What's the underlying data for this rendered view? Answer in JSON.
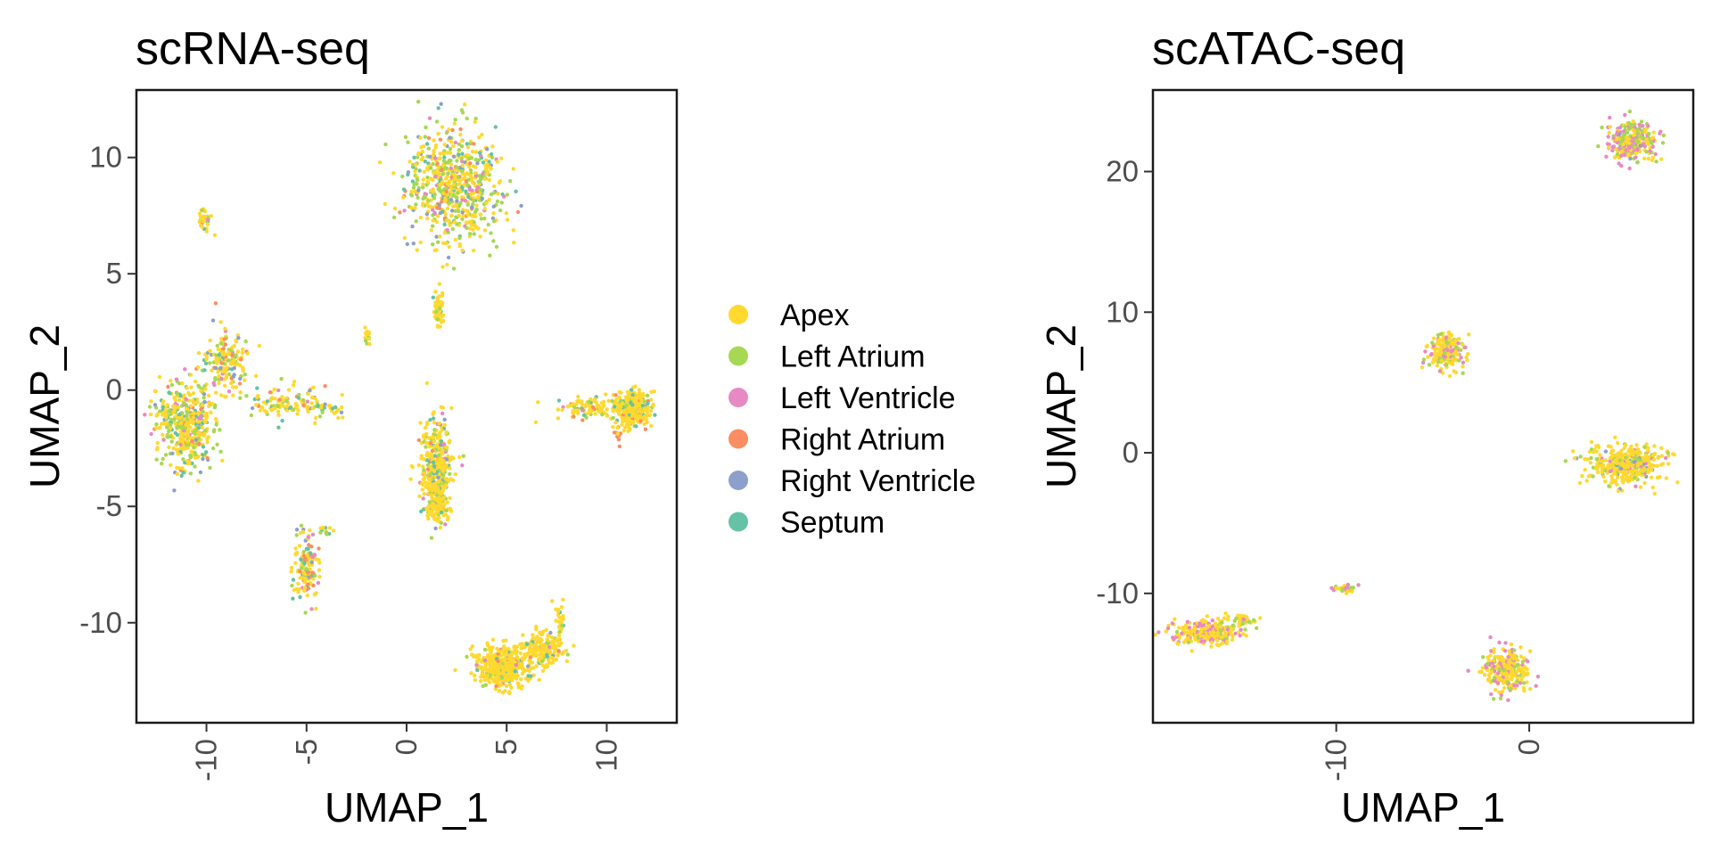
{
  "legend": {
    "items": [
      {
        "label": "Apex",
        "color": "#FFD92F"
      },
      {
        "label": "Left Atrium",
        "color": "#A6D854"
      },
      {
        "label": "Left Ventricle",
        "color": "#E78AC3"
      },
      {
        "label": "Right Atrium",
        "color": "#FC8D62"
      },
      {
        "label": "Right Ventricle",
        "color": "#8DA0CB"
      },
      {
        "label": "Septum",
        "color": "#66C2A5"
      }
    ]
  },
  "chart_data": [
    {
      "type": "scatter",
      "title": "scRNA-seq",
      "xlabel": "UMAP_1",
      "ylabel": "UMAP_2",
      "xlim": [
        -13.5,
        13.5
      ],
      "ylim": [
        -14.3,
        12.9
      ],
      "xticks": [
        -10,
        -5,
        0,
        5,
        10
      ],
      "xtick_labels": [
        "-10",
        "-5",
        "0",
        "5",
        "10"
      ],
      "yticks": [
        -10,
        -5,
        0,
        5,
        10
      ],
      "ytick_labels": [
        "-10",
        "-5",
        "0",
        "5",
        "10"
      ],
      "grid": false,
      "clusters": [
        {
          "cx": 2.4,
          "cy": 8.8,
          "sx": 1.6,
          "sy": 1.6,
          "n": 650,
          "mix": [
            0.45,
            0.3,
            0.05,
            0.06,
            0.06,
            0.08
          ]
        },
        {
          "cx": 1.6,
          "cy": 3.4,
          "sx": 0.2,
          "sy": 0.5,
          "n": 50,
          "mix": [
            0.9,
            0.05,
            0,
            0,
            0,
            0.05
          ]
        },
        {
          "cx": -10.1,
          "cy": 7.4,
          "sx": 0.2,
          "sy": 0.4,
          "n": 35,
          "mix": [
            0.7,
            0.1,
            0.1,
            0,
            0,
            0.1
          ]
        },
        {
          "cx": -2.0,
          "cy": 2.3,
          "sx": 0.12,
          "sy": 0.3,
          "n": 14,
          "mix": [
            0.7,
            0.2,
            0,
            0,
            0,
            0.1
          ]
        },
        {
          "cx": -11.0,
          "cy": -1.5,
          "sx": 1.0,
          "sy": 1.2,
          "n": 450,
          "mix": [
            0.55,
            0.2,
            0.05,
            0.05,
            0.05,
            0.1
          ]
        },
        {
          "cx": -9.0,
          "cy": 1.2,
          "sx": 0.8,
          "sy": 0.9,
          "n": 180,
          "mix": [
            0.5,
            0.2,
            0.05,
            0.08,
            0.07,
            0.1
          ]
        },
        {
          "cx": -6.0,
          "cy": -0.5,
          "sx": 1.3,
          "sy": 0.5,
          "n": 110,
          "mix": [
            0.55,
            0.2,
            0.05,
            0.05,
            0.05,
            0.1
          ]
        },
        {
          "cx": -4.0,
          "cy": -0.8,
          "sx": 0.6,
          "sy": 0.2,
          "n": 30,
          "mix": [
            0.6,
            0.2,
            0,
            0,
            0.1,
            0.1
          ]
        },
        {
          "cx": 1.5,
          "cy": -3.5,
          "sx": 0.55,
          "sy": 1.4,
          "n": 380,
          "mix": [
            0.65,
            0.15,
            0.04,
            0.04,
            0.04,
            0.08
          ]
        },
        {
          "cx": 1.6,
          "cy": -5.0,
          "sx": 0.4,
          "sy": 0.4,
          "n": 90,
          "mix": [
            0.9,
            0.05,
            0,
            0,
            0,
            0.05
          ]
        },
        {
          "cx": -5.0,
          "cy": -7.5,
          "sx": 0.4,
          "sy": 1.0,
          "n": 140,
          "mix": [
            0.55,
            0.15,
            0.05,
            0.1,
            0.05,
            0.1
          ]
        },
        {
          "cx": -4.0,
          "cy": -6.1,
          "sx": 0.3,
          "sy": 0.2,
          "n": 12,
          "mix": [
            0.7,
            0.2,
            0,
            0,
            0,
            0.1
          ]
        },
        {
          "cx": 11.3,
          "cy": -0.8,
          "sx": 0.6,
          "sy": 0.5,
          "n": 320,
          "mix": [
            0.85,
            0.05,
            0,
            0.04,
            0,
            0.06
          ]
        },
        {
          "cx": 9.0,
          "cy": -0.8,
          "sx": 1.1,
          "sy": 0.3,
          "n": 90,
          "mix": [
            0.65,
            0.15,
            0.05,
            0.05,
            0,
            0.1
          ]
        },
        {
          "cx": 10.6,
          "cy": -2.0,
          "sx": 0.15,
          "sy": 0.4,
          "n": 12,
          "mix": [
            0.3,
            0,
            0,
            0.7,
            0,
            0
          ]
        },
        {
          "cx": 4.8,
          "cy": -11.9,
          "sx": 0.9,
          "sy": 0.6,
          "n": 420,
          "mix": [
            0.85,
            0.05,
            0.02,
            0.02,
            0.02,
            0.04
          ]
        },
        {
          "cx": 6.8,
          "cy": -11.2,
          "sx": 0.7,
          "sy": 0.5,
          "n": 170,
          "mix": [
            0.85,
            0.05,
            0.02,
            0.02,
            0.02,
            0.04
          ]
        },
        {
          "cx": 7.7,
          "cy": -9.8,
          "sx": 0.2,
          "sy": 0.5,
          "n": 25,
          "mix": [
            0.9,
            0.05,
            0,
            0,
            0,
            0.05
          ]
        }
      ]
    },
    {
      "type": "scatter",
      "title": "scATAC-seq",
      "xlabel": "UMAP_1",
      "ylabel": "UMAP_2",
      "xlim": [
        -19.5,
        8.5
      ],
      "ylim": [
        -19.2,
        25.8
      ],
      "xticks": [
        -10,
        0
      ],
      "xtick_labels": [
        "-10",
        "0"
      ],
      "yticks": [
        -10,
        0,
        10,
        20
      ],
      "ytick_labels": [
        "-10",
        "0",
        "10",
        "20"
      ],
      "grid": false,
      "clusters": [
        {
          "cx": 5.3,
          "cy": 22.2,
          "sx": 0.8,
          "sy": 0.9,
          "n": 300,
          "mix": [
            0.4,
            0.3,
            0.28,
            0,
            0.02,
            0
          ]
        },
        {
          "cx": -4.3,
          "cy": 7.3,
          "sx": 0.6,
          "sy": 0.8,
          "n": 200,
          "mix": [
            0.6,
            0.15,
            0.25,
            0,
            0,
            0
          ]
        },
        {
          "cx": 5.0,
          "cy": -0.8,
          "sx": 1.3,
          "sy": 0.9,
          "n": 380,
          "mix": [
            0.7,
            0.15,
            0.1,
            0,
            0.05,
            0
          ]
        },
        {
          "cx": -9.5,
          "cy": -9.7,
          "sx": 0.5,
          "sy": 0.2,
          "n": 30,
          "mix": [
            0.6,
            0.1,
            0.3,
            0,
            0,
            0
          ]
        },
        {
          "cx": -16.8,
          "cy": -12.8,
          "sx": 1.2,
          "sy": 0.6,
          "n": 250,
          "mix": [
            0.6,
            0.15,
            0.25,
            0,
            0,
            0
          ]
        },
        {
          "cx": -15.0,
          "cy": -11.9,
          "sx": 0.6,
          "sy": 0.3,
          "n": 40,
          "mix": [
            0.7,
            0.2,
            0.1,
            0,
            0,
            0
          ]
        },
        {
          "cx": -1.2,
          "cy": -15.4,
          "sx": 0.8,
          "sy": 1.0,
          "n": 280,
          "mix": [
            0.6,
            0.15,
            0.25,
            0,
            0,
            0
          ]
        }
      ]
    }
  ]
}
